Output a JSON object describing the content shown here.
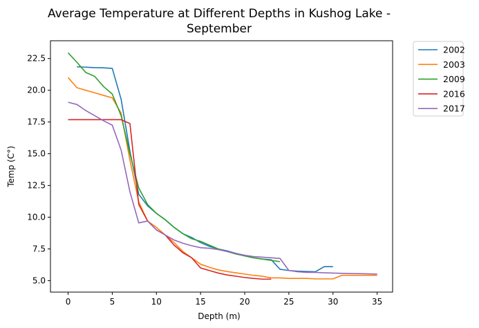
{
  "chart_data": {
    "type": "line",
    "title_lines": [
      "Average Temperature at Different Depths in Kushog Lake -",
      "September"
    ],
    "xlabel": "Depth (m)",
    "ylabel": "Temp (C°)",
    "xlim": [
      -2,
      36.75
    ],
    "ylim": [
      4.1,
      23.9
    ],
    "xticks": [
      0,
      5,
      10,
      15,
      20,
      25,
      30,
      35
    ],
    "xtick_labels": [
      "0",
      "5",
      "10",
      "15",
      "20",
      "25",
      "30",
      "35"
    ],
    "yticks": [
      5.0,
      7.5,
      10.0,
      12.5,
      15.0,
      17.5,
      20.0,
      22.5
    ],
    "ytick_labels": [
      "5.0",
      "7.5",
      "10.0",
      "12.5",
      "15.0",
      "17.5",
      "20.0",
      "22.5"
    ],
    "grid": false,
    "legend_position": "outside-top-right",
    "series": [
      {
        "name": "2002",
        "color": "#1f77b4",
        "x": [
          1,
          2,
          3,
          4,
          5,
          6,
          7,
          8,
          9,
          10,
          11,
          12,
          13,
          14,
          15,
          16,
          17,
          18,
          19,
          20,
          21,
          22,
          23,
          24,
          25,
          26,
          27,
          28,
          29,
          30
        ],
        "y": [
          21.85,
          21.82,
          21.78,
          21.77,
          21.72,
          19.3,
          15.2,
          11.8,
          10.9,
          10.3,
          9.8,
          9.2,
          8.7,
          8.4,
          8.0,
          7.7,
          7.5,
          7.35,
          7.15,
          6.95,
          6.8,
          6.7,
          6.65,
          5.9,
          5.8,
          5.75,
          5.72,
          5.7,
          6.1,
          6.1
        ]
      },
      {
        "name": "2003",
        "color": "#ff7f0e",
        "x": [
          0,
          1,
          2,
          3,
          4,
          5,
          6,
          7,
          8,
          9,
          10,
          11,
          12,
          13,
          14,
          15,
          16,
          17,
          18,
          19,
          20,
          21,
          22,
          23,
          24,
          25,
          26,
          27,
          28,
          29,
          30,
          31,
          32,
          33,
          34,
          35
        ],
        "y": [
          21.0,
          20.2,
          20.0,
          19.8,
          19.6,
          19.4,
          18.2,
          14.5,
          11.2,
          9.7,
          9.2,
          8.6,
          8.0,
          7.3,
          6.8,
          6.3,
          6.05,
          5.85,
          5.72,
          5.62,
          5.52,
          5.42,
          5.35,
          5.22,
          5.22,
          5.18,
          5.18,
          5.18,
          5.14,
          5.14,
          5.14,
          5.42,
          5.42,
          5.42,
          5.42,
          5.42
        ]
      },
      {
        "name": "2009",
        "color": "#2ca02c",
        "x": [
          0,
          1,
          2,
          3,
          4,
          5,
          6,
          7,
          8,
          9,
          10,
          11,
          12,
          13,
          14,
          15,
          16,
          17,
          18,
          19,
          20,
          21,
          22,
          23,
          24
        ],
        "y": [
          22.95,
          22.2,
          21.4,
          21.1,
          20.3,
          19.7,
          18.0,
          15.0,
          12.3,
          11.0,
          10.3,
          9.8,
          9.2,
          8.7,
          8.3,
          8.1,
          7.8,
          7.5,
          7.3,
          7.1,
          6.95,
          6.8,
          6.7,
          6.6,
          6.5
        ]
      },
      {
        "name": "2016",
        "color": "#d62728",
        "x": [
          0,
          1,
          2,
          3,
          4,
          5,
          6,
          7,
          8,
          9,
          10,
          11,
          12,
          13,
          14,
          15,
          16,
          17,
          18,
          19,
          20,
          21,
          22,
          23
        ],
        "y": [
          17.68,
          17.68,
          17.68,
          17.68,
          17.68,
          17.68,
          17.68,
          17.38,
          11.0,
          9.7,
          9.0,
          8.6,
          7.8,
          7.2,
          6.8,
          6.0,
          5.8,
          5.6,
          5.45,
          5.35,
          5.25,
          5.18,
          5.12,
          5.12
        ]
      },
      {
        "name": "2017",
        "color": "#9467bd",
        "x": [
          0,
          1,
          2,
          3,
          4,
          5,
          6,
          7,
          8,
          9,
          10,
          11,
          12,
          13,
          14,
          15,
          16,
          17,
          18,
          19,
          20,
          21,
          22,
          23,
          24,
          25,
          26,
          27,
          28,
          29,
          30,
          31,
          32,
          33,
          34,
          35
        ],
        "y": [
          19.05,
          18.88,
          18.4,
          18.0,
          17.6,
          17.25,
          15.3,
          12.0,
          9.55,
          9.7,
          9.0,
          8.6,
          8.2,
          7.95,
          7.75,
          7.6,
          7.55,
          7.45,
          7.3,
          7.15,
          7.0,
          6.9,
          6.85,
          6.8,
          6.75,
          5.8,
          5.7,
          5.65,
          5.65,
          5.62,
          5.6,
          5.58,
          5.56,
          5.55,
          5.54,
          5.52
        ]
      }
    ]
  }
}
